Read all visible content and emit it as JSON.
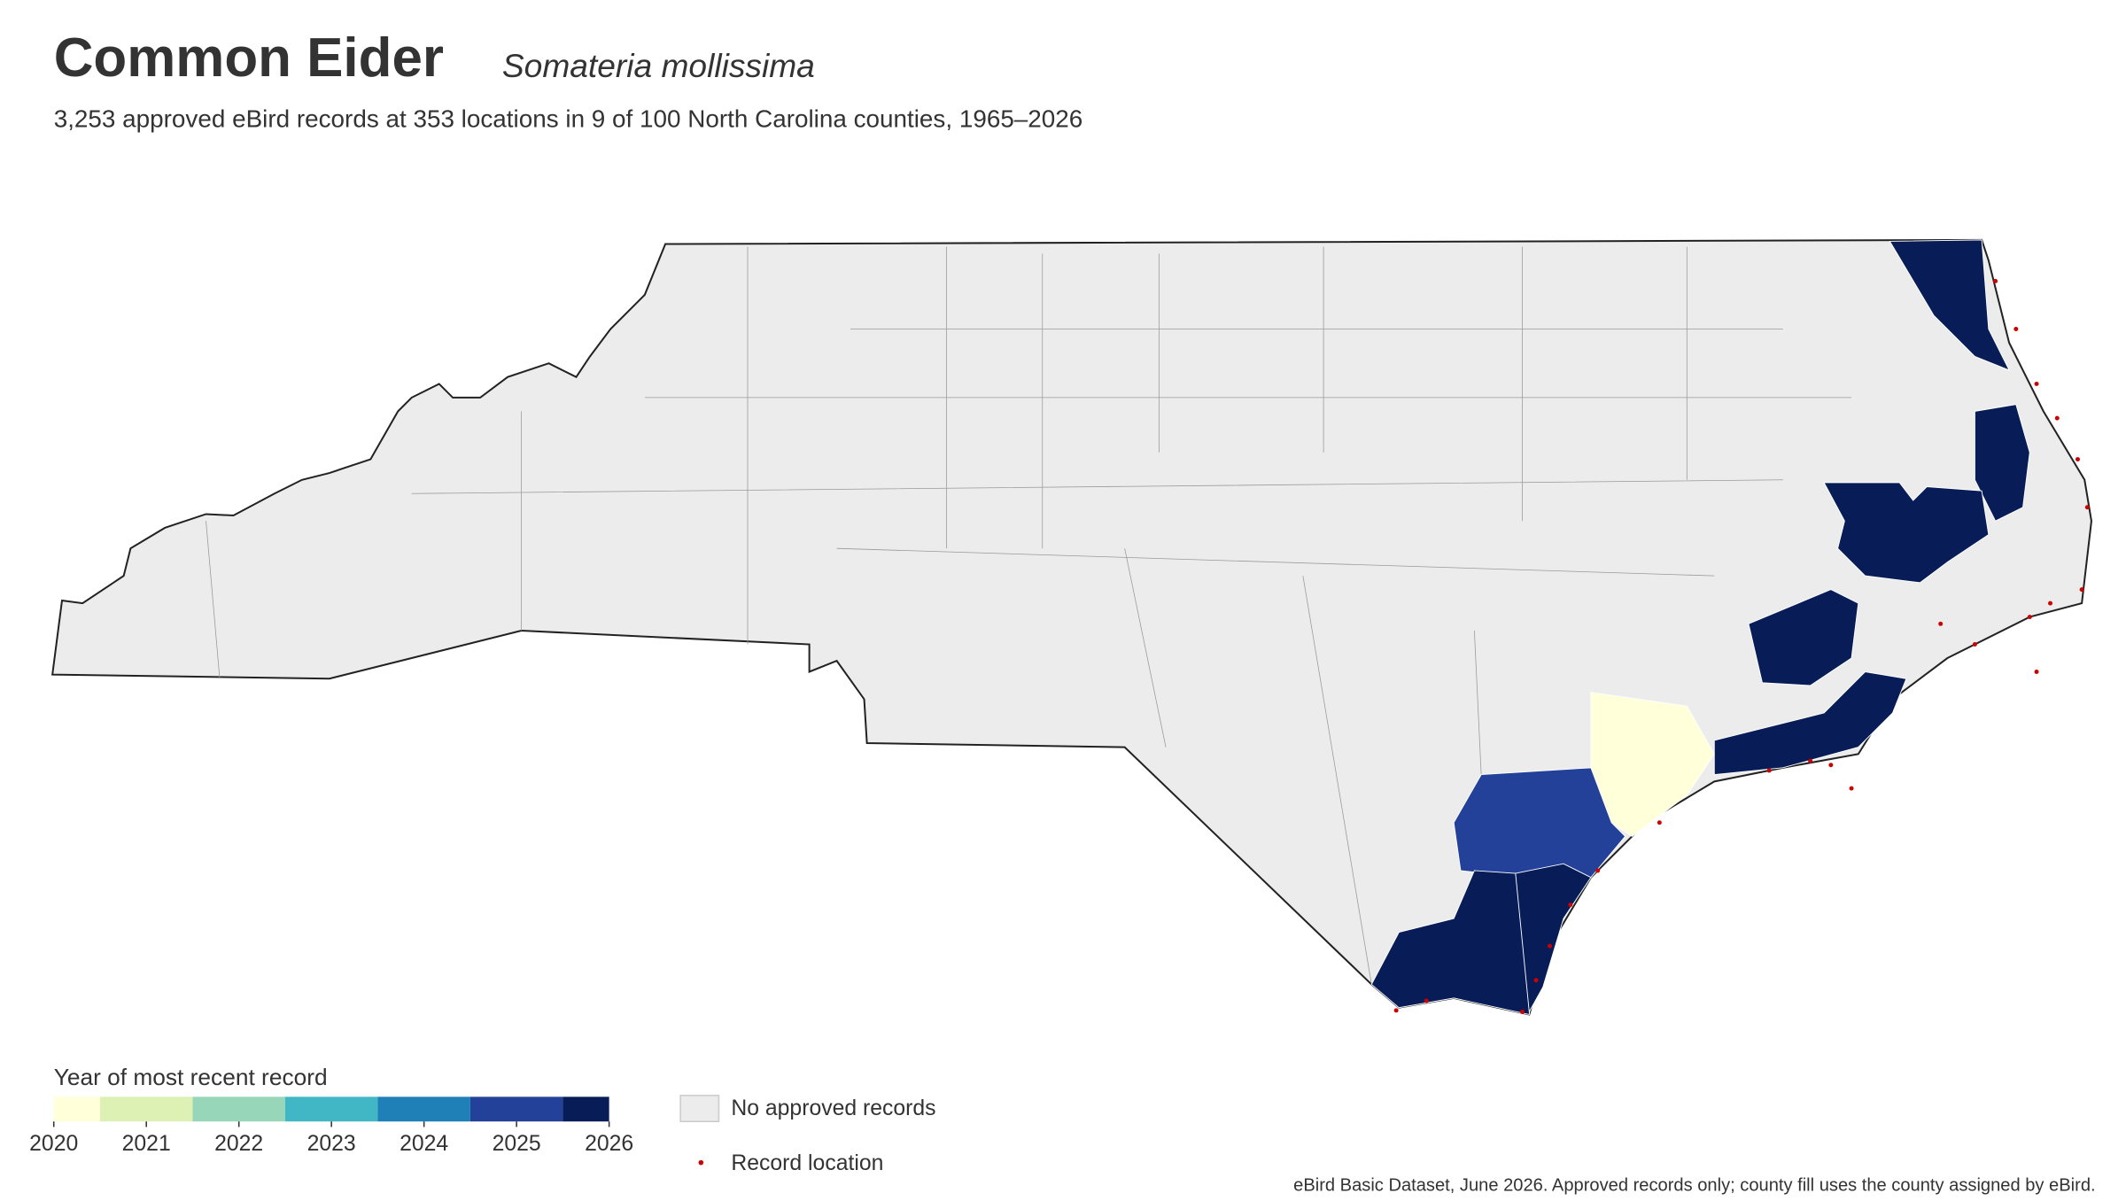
{
  "header": {
    "title": "Common Eider",
    "scientific_name": "Somateria mollissima",
    "subtitle": "3,253 approved eBird records at 353 locations in 9 of 100 North Carolina counties, 1965–2026"
  },
  "colorbar": {
    "title": "Year of most recent record",
    "lim": [
      2020,
      2026
    ],
    "ticks": [
      2020,
      2021,
      2022,
      2023,
      2024,
      2025,
      2026
    ],
    "colors": [
      "#ffffd9",
      "#dcf1b3",
      "#97d6b9",
      "#41b6c4",
      "#1f80b8",
      "#24419a",
      "#081d58"
    ]
  },
  "legend": {
    "no_records": "No approved records",
    "record_location": "Record location"
  },
  "source": "eBird Basic Dataset, June 2026. Approved records only; county fill uses the county assigned by eBird."
}
